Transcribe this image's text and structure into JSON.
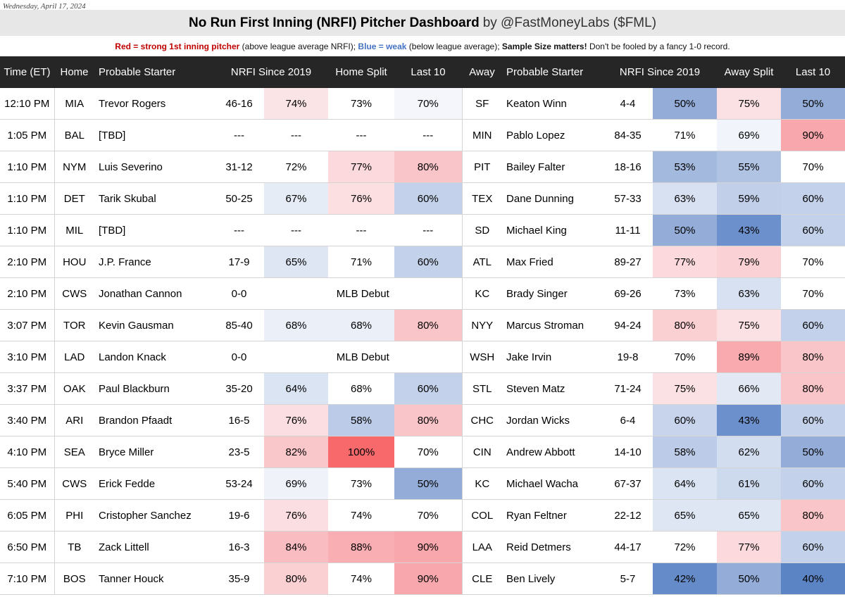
{
  "date": "Wednesday, April 17, 2024",
  "title": "No Run First Inning (NRFI) Pitcher Dashboard",
  "byline": "by @FastMoneyLabs ($FML)",
  "legend": {
    "red_label": "Red = strong 1st inning pitcher",
    "red_note": " (above league average NRFI); ",
    "blue_label": "Blue = weak",
    "blue_note": " (below league average); ",
    "sample_label": "Sample Size matters!",
    "sample_note": " Don't be fooled by a fancy 1-0 record."
  },
  "colors": {
    "header_bg": "#262626",
    "title_bg": "#e7e7e7",
    "red_text": "#c00000",
    "blue_text": "#4472c4"
  },
  "headers": {
    "time": "Time (ET)",
    "home": "Home",
    "home_starter": "Probable Starter",
    "home_nrfi": "NRFI Since 2019",
    "home_split": "Home Split",
    "home_last10": "Last 10",
    "away": "Away",
    "away_starter": "Probable Starter",
    "away_nrfi": "NRFI Since 2019",
    "away_split": "Away Split",
    "away_last10": "Last 10"
  },
  "rows": [
    {
      "time": "12:10 PM",
      "home": "MIA",
      "h_starter": "Trevor Rogers",
      "h_rec": "46-16",
      "h_pct": "74%",
      "h_pct_c": "#fbe4e6",
      "h_split": "73%",
      "h_split_c": "#ffffff",
      "h_l10": "70%",
      "h_l10_c": "#f4f6fb",
      "away": "SF",
      "a_starter": "Keaton Winn",
      "a_rec": "4-4",
      "a_pct": "50%",
      "a_pct_c": "#93add8",
      "a_split": "75%",
      "a_split_c": "#fbe1e3",
      "a_l10": "50%",
      "a_l10_c": "#93add8"
    },
    {
      "time": "1:05 PM",
      "home": "BAL",
      "h_starter": "[TBD]",
      "h_rec": "---",
      "h_pct": "---",
      "h_pct_c": "#ffffff",
      "h_split": "---",
      "h_split_c": "#ffffff",
      "h_l10": "---",
      "h_l10_c": "#ffffff",
      "away": "MIN",
      "a_starter": "Pablo Lopez",
      "a_rec": "84-35",
      "a_pct": "71%",
      "a_pct_c": "#ffffff",
      "a_split": "69%",
      "a_split_c": "#f1f4fa",
      "a_l10": "90%",
      "a_l10_c": "#f8a8ac"
    },
    {
      "time": "1:10 PM",
      "home": "NYM",
      "h_starter": "Luis Severino",
      "h_rec": "31-12",
      "h_pct": "72%",
      "h_pct_c": "#ffffff",
      "h_split": "77%",
      "h_split_c": "#fbd9dc",
      "h_l10": "80%",
      "h_l10_c": "#f9c5c8",
      "away": "PIT",
      "a_starter": "Bailey Falter",
      "a_rec": "18-16",
      "a_pct": "53%",
      "a_pct_c": "#a3b9de",
      "a_split": "55%",
      "a_split_c": "#b0c3e3",
      "a_l10": "70%",
      "a_l10_c": "#ffffff"
    },
    {
      "time": "1:10 PM",
      "home": "DET",
      "h_starter": "Tarik Skubal",
      "h_rec": "50-25",
      "h_pct": "67%",
      "h_pct_c": "#e6ecf6",
      "h_split": "76%",
      "h_split_c": "#fbdfe1",
      "h_l10": "60%",
      "h_l10_c": "#c3d1ea",
      "away": "TEX",
      "a_starter": "Dane Dunning",
      "a_rec": "57-33",
      "a_pct": "63%",
      "a_pct_c": "#d7e1f1",
      "a_split": "59%",
      "a_split_c": "#c1cfe9",
      "a_l10": "60%",
      "a_l10_c": "#c3d1ea"
    },
    {
      "time": "1:10 PM",
      "home": "MIL",
      "h_starter": "[TBD]",
      "h_rec": "---",
      "h_pct": "---",
      "h_pct_c": "#ffffff",
      "h_split": "---",
      "h_split_c": "#ffffff",
      "h_l10": "---",
      "h_l10_c": "#ffffff",
      "away": "SD",
      "a_starter": "Michael King",
      "a_rec": "11-11",
      "a_pct": "50%",
      "a_pct_c": "#93add8",
      "a_split": "43%",
      "a_split_c": "#6c90cb",
      "a_l10": "60%",
      "a_l10_c": "#c3d1ea"
    },
    {
      "time": "2:10 PM",
      "home": "HOU",
      "h_starter": "J.P. France",
      "h_rec": "17-9",
      "h_pct": "65%",
      "h_pct_c": "#dee6f3",
      "h_split": "71%",
      "h_split_c": "#ffffff",
      "h_l10": "60%",
      "h_l10_c": "#c3d1ea",
      "away": "ATL",
      "a_starter": "Max Fried",
      "a_rec": "89-27",
      "a_pct": "77%",
      "a_pct_c": "#fbd9dc",
      "a_split": "79%",
      "a_split_c": "#fad2d5",
      "a_l10": "70%",
      "a_l10_c": "#ffffff"
    },
    {
      "time": "2:10 PM",
      "home": "CWS",
      "h_starter": "Jonathan Cannon",
      "h_rec": "0-0",
      "h_debut": "MLB Debut",
      "away": "KC",
      "a_starter": "Brady Singer",
      "a_rec": "69-26",
      "a_pct": "73%",
      "a_pct_c": "#ffffff",
      "a_split": "63%",
      "a_split_c": "#d7e1f1",
      "a_l10": "70%",
      "a_l10_c": "#ffffff"
    },
    {
      "time": "3:07 PM",
      "home": "TOR",
      "h_starter": "Kevin Gausman",
      "h_rec": "85-40",
      "h_pct": "68%",
      "h_pct_c": "#eaeff8",
      "h_split": "68%",
      "h_split_c": "#eaeff8",
      "h_l10": "80%",
      "h_l10_c": "#f9c5c8",
      "away": "NYY",
      "a_starter": "Marcus Stroman",
      "a_rec": "94-24",
      "a_pct": "80%",
      "a_pct_c": "#fad0d3",
      "a_split": "75%",
      "a_split_c": "#fbe1e3",
      "a_l10": "60%",
      "a_l10_c": "#c3d1ea"
    },
    {
      "time": "3:10 PM",
      "home": "LAD",
      "h_starter": "Landon Knack",
      "h_rec": "0-0",
      "h_debut": "MLB Debut",
      "away": "WSH",
      "a_starter": "Jake Irvin",
      "a_rec": "19-8",
      "a_pct": "70%",
      "a_pct_c": "#ffffff",
      "a_split": "89%",
      "a_split_c": "#f8aaae",
      "a_l10": "80%",
      "a_l10_c": "#f9c5c8"
    },
    {
      "time": "3:37 PM",
      "home": "OAK",
      "h_starter": "Paul Blackburn",
      "h_rec": "35-20",
      "h_pct": "64%",
      "h_pct_c": "#dae4f2",
      "h_split": "68%",
      "h_split_c": "#ffffff",
      "h_l10": "60%",
      "h_l10_c": "#c3d1ea",
      "away": "STL",
      "a_starter": "Steven Matz",
      "a_rec": "71-24",
      "a_pct": "75%",
      "a_pct_c": "#fbe1e3",
      "a_split": "66%",
      "a_split_c": "#e2e9f5",
      "a_l10": "80%",
      "a_l10_c": "#f9c5c8"
    },
    {
      "time": "3:40 PM",
      "home": "ARI",
      "h_starter": "Brandon Pfaadt",
      "h_rec": "16-5",
      "h_pct": "76%",
      "h_pct_c": "#fbdee1",
      "h_split": "58%",
      "h_split_c": "#bccbe7",
      "h_l10": "80%",
      "h_l10_c": "#f9c5c8",
      "away": "CHC",
      "a_starter": "Jordan Wicks",
      "a_rec": "6-4",
      "a_pct": "60%",
      "a_pct_c": "#c7d4eb",
      "a_split": "43%",
      "a_split_c": "#6c90cb",
      "a_l10": "60%",
      "a_l10_c": "#c3d1ea"
    },
    {
      "time": "4:10 PM",
      "home": "SEA",
      "h_starter": "Bryce Miller",
      "h_rec": "23-5",
      "h_pct": "82%",
      "h_pct_c": "#f9c6c9",
      "h_split": "100%",
      "h_split_c": "#f8696b",
      "h_l10": "70%",
      "h_l10_c": "#ffffff",
      "away": "CIN",
      "a_starter": "Andrew Abbott",
      "a_rec": "14-10",
      "a_pct": "58%",
      "a_pct_c": "#bccbe7",
      "a_split": "62%",
      "a_split_c": "#d2ddef",
      "a_l10": "50%",
      "a_l10_c": "#93add8"
    },
    {
      "time": "5:40 PM",
      "home": "CWS",
      "h_starter": "Erick Fedde",
      "h_rec": "53-24",
      "h_pct": "69%",
      "h_pct_c": "#eff2f9",
      "h_split": "73%",
      "h_split_c": "#ffffff",
      "h_l10": "50%",
      "h_l10_c": "#93add8",
      "away": "KC",
      "a_starter": "Michael Wacha",
      "a_rec": "67-37",
      "a_pct": "64%",
      "a_pct_c": "#dae4f2",
      "a_split": "61%",
      "a_split_c": "#cdd9ed",
      "a_l10": "60%",
      "a_l10_c": "#c3d1ea"
    },
    {
      "time": "6:05 PM",
      "home": "PHI",
      "h_starter": "Cristopher Sanchez",
      "h_rec": "19-6",
      "h_pct": "76%",
      "h_pct_c": "#fbdee1",
      "h_split": "74%",
      "h_split_c": "#ffffff",
      "h_l10": "70%",
      "h_l10_c": "#ffffff",
      "away": "COL",
      "a_starter": "Ryan Feltner",
      "a_rec": "22-12",
      "a_pct": "65%",
      "a_pct_c": "#dee6f3",
      "a_split": "65%",
      "a_split_c": "#dee6f3",
      "a_l10": "80%",
      "a_l10_c": "#f9c5c8"
    },
    {
      "time": "6:50 PM",
      "home": "TB",
      "h_starter": "Zack Littell",
      "h_rec": "16-3",
      "h_pct": "84%",
      "h_pct_c": "#f9bcc0",
      "h_split": "88%",
      "h_split_c": "#f8aeb2",
      "h_l10": "90%",
      "h_l10_c": "#f8a8ac",
      "away": "LAA",
      "a_starter": "Reid Detmers",
      "a_rec": "44-17",
      "a_pct": "72%",
      "a_pct_c": "#ffffff",
      "a_split": "77%",
      "a_split_c": "#fbd9dc",
      "a_l10": "60%",
      "a_l10_c": "#c3d1ea"
    },
    {
      "time": "7:10 PM",
      "home": "BOS",
      "h_starter": "Tanner Houck",
      "h_rec": "35-9",
      "h_pct": "80%",
      "h_pct_c": "#fad0d3",
      "h_split": "74%",
      "h_split_c": "#ffffff",
      "h_l10": "90%",
      "h_l10_c": "#f8a8ac",
      "away": "CLE",
      "a_starter": "Ben Lively",
      "a_rec": "5-7",
      "a_pct": "42%",
      "a_pct_c": "#658bc8",
      "a_split": "50%",
      "a_split_c": "#93add8",
      "a_l10": "40%",
      "a_l10_c": "#5b84c5"
    }
  ]
}
